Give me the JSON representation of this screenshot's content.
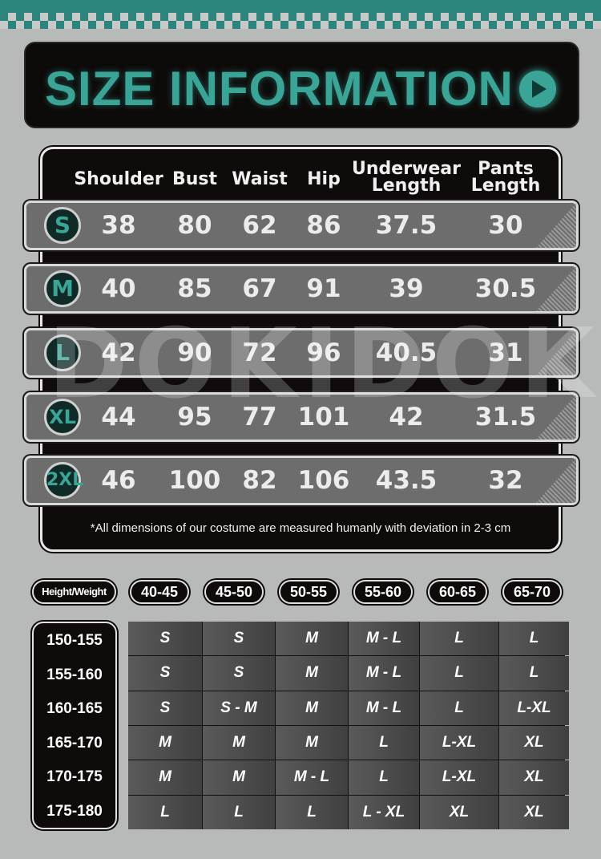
{
  "title": "SIZE INFORMATION",
  "watermark": "DOKIDOKI",
  "accent_color": "#3aa496",
  "size_table": {
    "headers": [
      "Shoulder",
      "Bust",
      "Waist",
      "Hip",
      "Underwear Length",
      "Pants Length"
    ],
    "header_lines": [
      [
        "Shoulder"
      ],
      [
        "Bust"
      ],
      [
        "Waist"
      ],
      [
        "Hip"
      ],
      [
        "Underwear",
        "Length"
      ],
      [
        "Pants",
        "Length"
      ]
    ],
    "rows": [
      {
        "size": "S",
        "values": [
          "38",
          "80",
          "62",
          "86",
          "37.5",
          "30"
        ]
      },
      {
        "size": "M",
        "values": [
          "40",
          "85",
          "67",
          "91",
          "39",
          "30.5"
        ]
      },
      {
        "size": "L",
        "values": [
          "42",
          "90",
          "72",
          "96",
          "40.5",
          "31"
        ]
      },
      {
        "size": "XL",
        "values": [
          "44",
          "95",
          "77",
          "101",
          "42",
          "31.5"
        ]
      },
      {
        "size": "2XL",
        "values": [
          "46",
          "100",
          "82",
          "106",
          "43.5",
          "32"
        ]
      }
    ],
    "note": "*All dimensions of our costume are measured humanly with deviation in 2-3 cm"
  },
  "fit_table": {
    "corner": "Height/Weight",
    "weights": [
      "40-45",
      "45-50",
      "50-55",
      "55-60",
      "60-65",
      "65-70"
    ],
    "heights": [
      "150-155",
      "155-160",
      "160-165",
      "165-170",
      "170-175",
      "175-180"
    ],
    "cells": [
      [
        "S",
        "S",
        "M",
        "M - L",
        "L",
        "L"
      ],
      [
        "S",
        "S",
        "M",
        "M - L",
        "L",
        "L"
      ],
      [
        "S",
        "S - M",
        "M",
        "M - L",
        "L",
        "L-XL"
      ],
      [
        "M",
        "M",
        "M",
        "L",
        "L-XL",
        "XL"
      ],
      [
        "M",
        "M",
        "M - L",
        "L",
        "L-XL",
        "XL"
      ],
      [
        "L",
        "L",
        "L",
        "L - XL",
        "XL",
        "XL"
      ]
    ]
  }
}
